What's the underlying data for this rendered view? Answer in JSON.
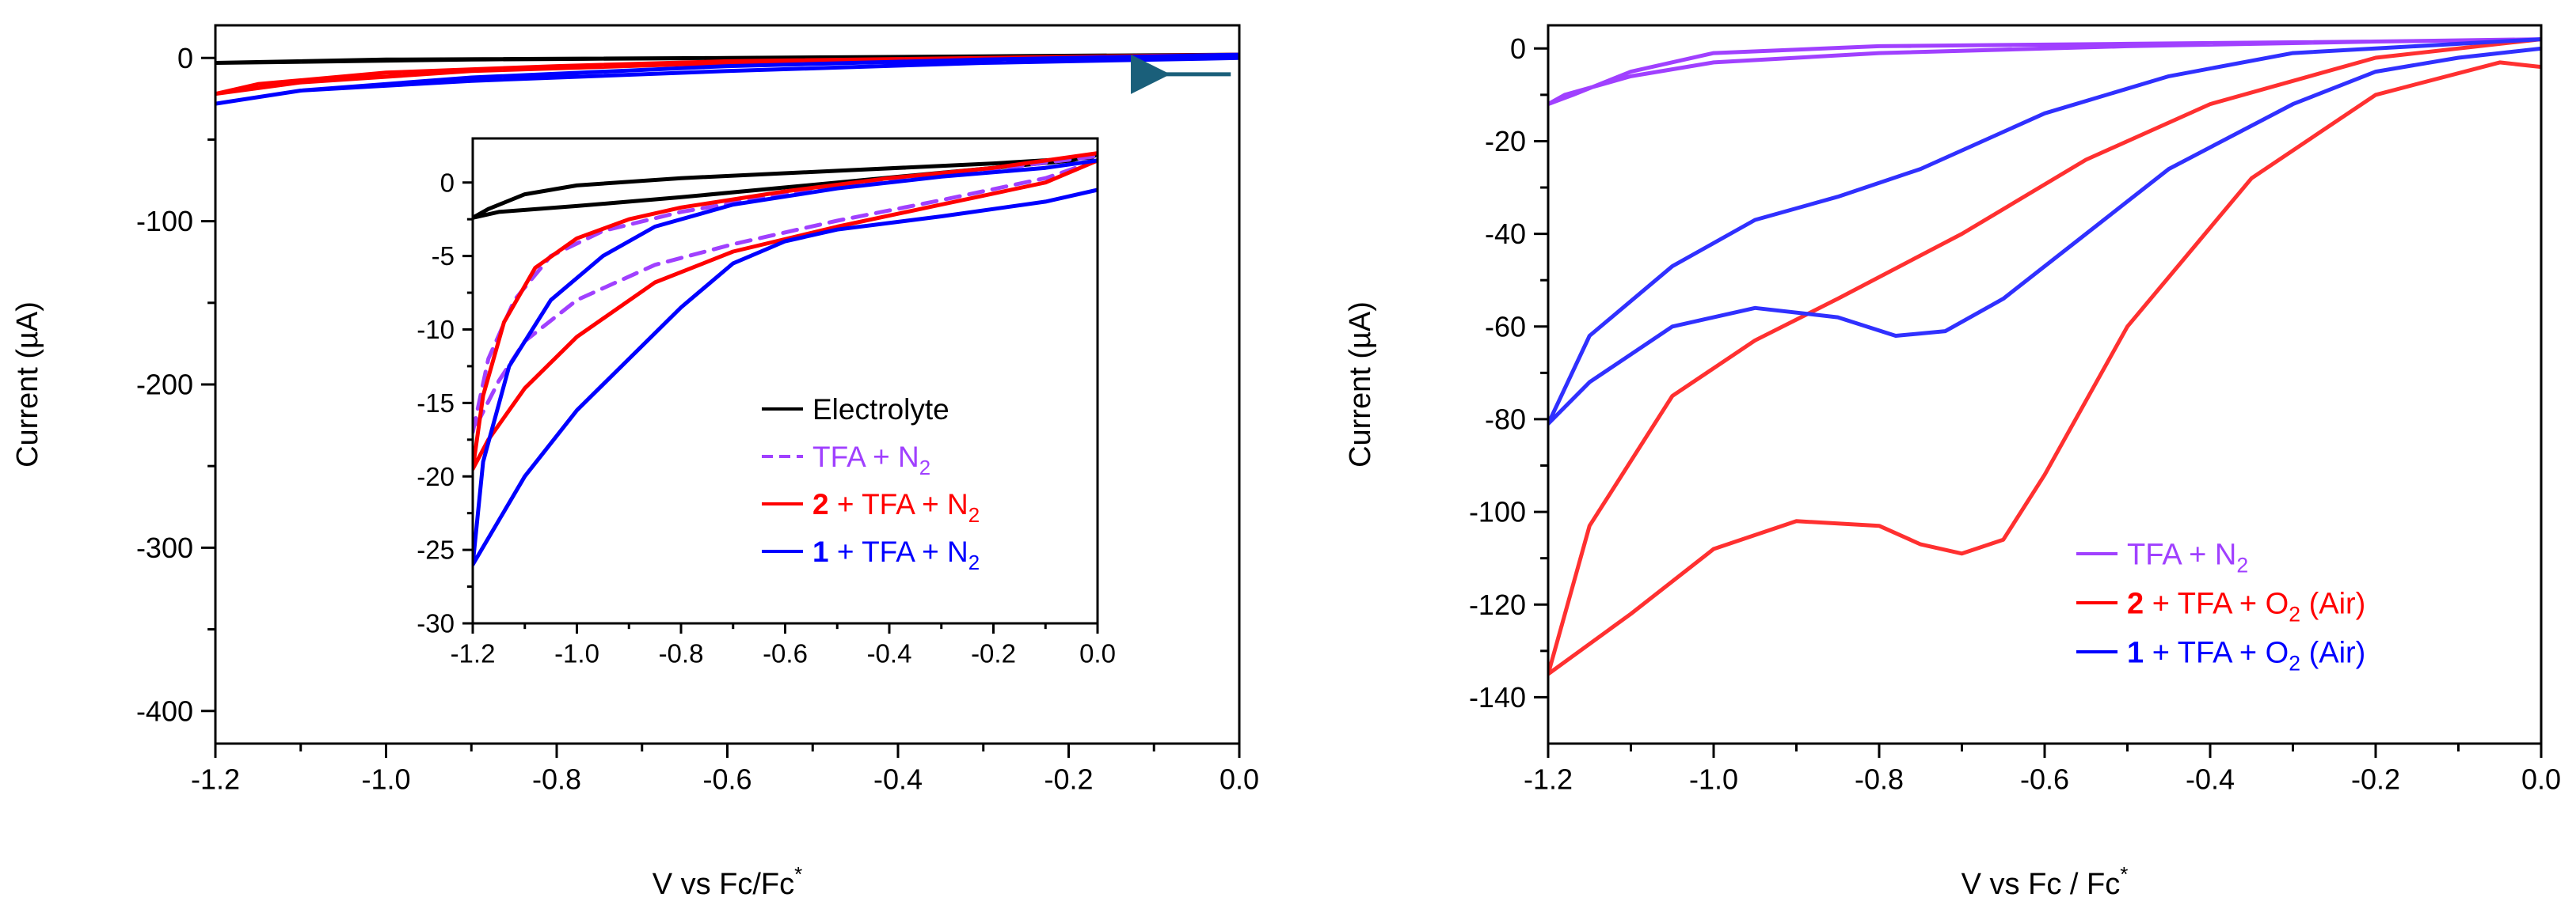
{
  "chart_data": [
    {
      "type": "line",
      "name": "left-main",
      "xlabel": "V vs Fc/Fc",
      "xlabel_sup": "*",
      "ylabel": "Current (µA)",
      "xlim": [
        -1.2,
        0.0
      ],
      "ylim": [
        -420,
        20
      ],
      "x_ticks": [
        "-1.2",
        "-1.0",
        "-0.8",
        "-0.6",
        "-0.4",
        "-0.2",
        "0.0"
      ],
      "y_ticks": [
        "0",
        "-100",
        "-200",
        "-300",
        "-400"
      ],
      "series": [
        {
          "name": "Electrolyte",
          "color": "#000000",
          "dash": false,
          "x": [
            0.0,
            -0.3,
            -0.6,
            -0.9,
            -1.2,
            -1.0,
            -0.6,
            -0.3,
            0.0
          ],
          "y": [
            2,
            1,
            0,
            -1,
            -3,
            -1,
            0,
            1,
            2
          ]
        },
        {
          "name": "2 + TFA + N2",
          "color": "#ff0000",
          "dash": false,
          "x": [
            0.0,
            -0.3,
            -0.6,
            -0.9,
            -1.1,
            -1.2,
            -1.15,
            -1.0,
            -0.8,
            -0.6,
            -0.3,
            0.0
          ],
          "y": [
            2,
            0,
            -3,
            -8,
            -15,
            -22,
            -16,
            -9,
            -5,
            -2,
            0,
            2
          ]
        },
        {
          "name": "1 + TFA + N2",
          "color": "#0000ff",
          "dash": false,
          "x": [
            0.0,
            -0.3,
            -0.6,
            -0.9,
            -1.1,
            -1.2,
            -1.1,
            -0.9,
            -0.6,
            -0.3,
            0.0
          ],
          "y": [
            2,
            -1,
            -5,
            -12,
            -20,
            -28,
            -20,
            -14,
            -8,
            -3,
            0
          ]
        }
      ],
      "arrow": {
        "x_from": -0.01,
        "x_to": -0.09,
        "y": -10,
        "color": "#1a5f7a"
      }
    },
    {
      "type": "line",
      "name": "left-inset",
      "xlim": [
        -1.2,
        0.0
      ],
      "ylim": [
        -30,
        3
      ],
      "x_ticks": [
        "-1.2",
        "-1.0",
        "-0.8",
        "-0.6",
        "-0.4",
        "-0.2",
        "0.0"
      ],
      "y_ticks": [
        "0",
        "-5",
        "-10",
        "-15",
        "-20",
        "-25",
        "-30"
      ],
      "legend": [
        {
          "label": "Electrolyte",
          "color": "#000000",
          "dash": false
        },
        {
          "label": "TFA + N",
          "sub": "2",
          "color": "#a040ff",
          "dash": true
        },
        {
          "label": "+ TFA + N",
          "prefix": "2",
          "sub": "2",
          "color": "#ff0000",
          "dash": false
        },
        {
          "label": "+ TFA + N",
          "prefix": "1",
          "sub": "2",
          "color": "#0000ff",
          "dash": false
        }
      ],
      "series": [
        {
          "name": "Electrolyte",
          "color": "#000000",
          "dash": false,
          "x": [
            0.0,
            -0.05,
            -0.2,
            -0.5,
            -0.8,
            -1.0,
            -1.15,
            -1.2,
            -1.17,
            -1.1,
            -1.0,
            -0.8,
            -0.5,
            -0.2,
            -0.01,
            0.0
          ],
          "y": [
            2,
            1.5,
            1.0,
            0.0,
            -1.0,
            -1.6,
            -2.0,
            -2.4,
            -1.8,
            -0.8,
            -0.2,
            0.3,
            0.8,
            1.3,
            1.7,
            2
          ]
        },
        {
          "name": "TFA + N2",
          "color": "#a040ff",
          "dash": true,
          "x": [
            0.0,
            -0.1,
            -0.3,
            -0.5,
            -0.7,
            -0.85,
            -1.0,
            -1.1,
            -1.15,
            -1.2,
            -1.17,
            -1.12,
            -1.05,
            -0.95,
            -0.8,
            -0.6,
            -0.4,
            -0.2,
            0.0
          ],
          "y": [
            1.5,
            0.3,
            -1.2,
            -2.6,
            -4.2,
            -5.6,
            -8.0,
            -10.8,
            -13.5,
            -17.0,
            -12.0,
            -8.0,
            -5.0,
            -3.3,
            -2.0,
            -0.8,
            0.2,
            0.9,
            1.8
          ]
        },
        {
          "name": "2 + TFA + N2",
          "color": "#ff0000",
          "dash": false,
          "x": [
            0.0,
            -0.1,
            -0.3,
            -0.5,
            -0.7,
            -0.85,
            -1.0,
            -1.1,
            -1.17,
            -1.2,
            -1.18,
            -1.14,
            -1.08,
            -1.0,
            -0.9,
            -0.8,
            -0.6,
            -0.4,
            -0.2,
            0.0
          ],
          "y": [
            1.5,
            0.0,
            -1.5,
            -3.0,
            -4.7,
            -6.8,
            -10.5,
            -14.0,
            -17.5,
            -19.5,
            -14.5,
            -9.5,
            -5.8,
            -3.8,
            -2.5,
            -1.7,
            -0.6,
            0.3,
            1.0,
            2.0
          ]
        },
        {
          "name": "1 + TFA + N2",
          "color": "#0000ff",
          "dash": false,
          "x": [
            0.0,
            -0.1,
            -0.3,
            -0.5,
            -0.6,
            -0.7,
            -0.8,
            -0.9,
            -1.0,
            -1.1,
            -1.2,
            -1.18,
            -1.13,
            -1.05,
            -0.95,
            -0.85,
            -0.7,
            -0.5,
            -0.3,
            -0.1,
            0.0
          ],
          "y": [
            -0.5,
            -1.3,
            -2.3,
            -3.2,
            -4.0,
            -5.5,
            -8.5,
            -12.0,
            -15.5,
            -20.0,
            -26.0,
            -19.0,
            -12.5,
            -8.0,
            -5.0,
            -3.0,
            -1.5,
            -0.4,
            0.4,
            1.0,
            1.5
          ]
        }
      ]
    },
    {
      "type": "line",
      "name": "right",
      "xlabel": "V vs Fc / Fc",
      "xlabel_sup": "*",
      "ylabel": "Current (µA)",
      "xlim": [
        -1.2,
        0.0
      ],
      "ylim": [
        -150,
        5
      ],
      "x_ticks": [
        "-1.2",
        "-1.0",
        "-0.8",
        "-0.6",
        "-0.4",
        "-0.2",
        "0.0"
      ],
      "y_ticks": [
        "0",
        "-20",
        "-40",
        "-60",
        "-80",
        "-100",
        "-120",
        "-140"
      ],
      "legend": [
        {
          "label": "TFA + N",
          "sub": "2",
          "color": "#a040ff",
          "dash": false
        },
        {
          "label": "+ TFA + O",
          "prefix": "2",
          "sub": "2",
          "suffix": " (Air)",
          "color": "#ff0000",
          "dash": false
        },
        {
          "label": "+ TFA + O",
          "prefix": "1",
          "sub": "2",
          "suffix": " (Air)",
          "color": "#0000ff",
          "dash": false
        }
      ],
      "series": [
        {
          "name": "TFA + N2",
          "color": "#a040ff",
          "dash": false,
          "x": [
            0.0,
            -0.2,
            -0.5,
            -0.8,
            -1.0,
            -1.1,
            -1.18,
            -1.2,
            -1.17,
            -1.1,
            -1.0,
            -0.8,
            -0.5,
            -0.2,
            0.0
          ],
          "y": [
            2,
            1.5,
            0.5,
            -1,
            -3,
            -6,
            -10,
            -12,
            -10,
            -5,
            -1,
            0.5,
            1,
            1.5,
            2
          ]
        },
        {
          "name": "2 + TFA + O2 (Air)",
          "color": "#ff3030",
          "dash": false,
          "x": [
            0.0,
            -0.05,
            -0.2,
            -0.35,
            -0.5,
            -0.6,
            -0.65,
            -0.7,
            -0.75,
            -0.8,
            -0.9,
            -1.0,
            -1.1,
            -1.2,
            -1.15,
            -1.05,
            -0.95,
            -0.85,
            -0.7,
            -0.55,
            -0.4,
            -0.2,
            0.0
          ],
          "y": [
            -4,
            -3,
            -10,
            -28,
            -60,
            -92,
            -106,
            -109,
            -107,
            -103,
            -102,
            -108,
            -122,
            -135,
            -103,
            -75,
            -63,
            -54,
            -40,
            -24,
            -12,
            -2,
            2
          ]
        },
        {
          "name": "1 + TFA + O2 (Air)",
          "color": "#3030ff",
          "dash": false,
          "x": [
            0.0,
            -0.1,
            -0.2,
            -0.3,
            -0.45,
            -0.55,
            -0.65,
            -0.72,
            -0.78,
            -0.85,
            -0.95,
            -1.05,
            -1.15,
            -1.2,
            -1.15,
            -1.05,
            -0.95,
            -0.85,
            -0.75,
            -0.6,
            -0.45,
            -0.3,
            -0.1,
            0.0
          ],
          "y": [
            0,
            -2,
            -5,
            -12,
            -26,
            -40,
            -54,
            -61,
            -62,
            -58,
            -56,
            -60,
            -72,
            -81,
            -62,
            -47,
            -37,
            -32,
            -26,
            -14,
            -6,
            -1,
            1,
            2
          ]
        }
      ]
    }
  ]
}
